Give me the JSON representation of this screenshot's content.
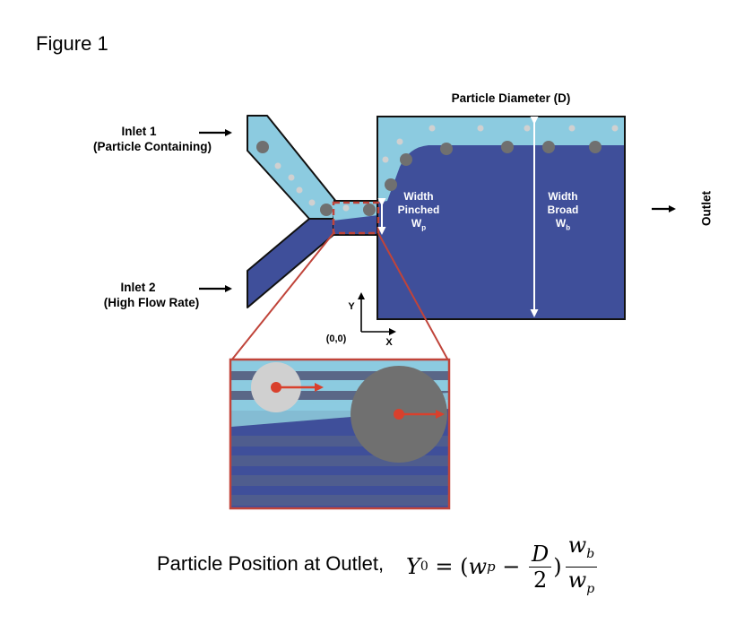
{
  "figure_title": "Figure 1",
  "labels": {
    "particle_diameter": "Particle Diameter (D)",
    "inlet1_line1": "Inlet 1",
    "inlet1_line2": "(Particle Containing)",
    "inlet2_line1": "Inlet 2",
    "inlet2_line2": "(High Flow Rate)",
    "outlet": "Outlet",
    "origin": "(0,0)",
    "axis_y": "Y",
    "axis_x": "X",
    "width_pinched_line1": "Width",
    "width_pinched_line2": "Pinched",
    "width_pinched_symbol": "W",
    "width_pinched_sub": "p",
    "width_broad_line1": "Width",
    "width_broad_line2": "Broad",
    "width_broad_symbol": "W",
    "width_broad_sub": "b"
  },
  "formula": {
    "prefix": "Particle Position at Outlet, ",
    "Y": "Y",
    "Y_sub": "0",
    "equals": " = (",
    "w1": "w",
    "w1_sub": "p",
    "minus": " − ",
    "frac1_num": "D",
    "frac1_den": "2",
    "close": ")",
    "frac2_num": "w",
    "frac2_num_sub": "b",
    "frac2_den": "w",
    "frac2_den_sub": "p"
  },
  "colors": {
    "dark_blue": "#3f4f9a",
    "light_blue": "#8ccbe0",
    "stripe_gray": "#5a6787",
    "particle_gray": "#707070",
    "particle_light": "#d0d0d0",
    "red": "#d9402c",
    "zoom_border": "#c0443a"
  }
}
